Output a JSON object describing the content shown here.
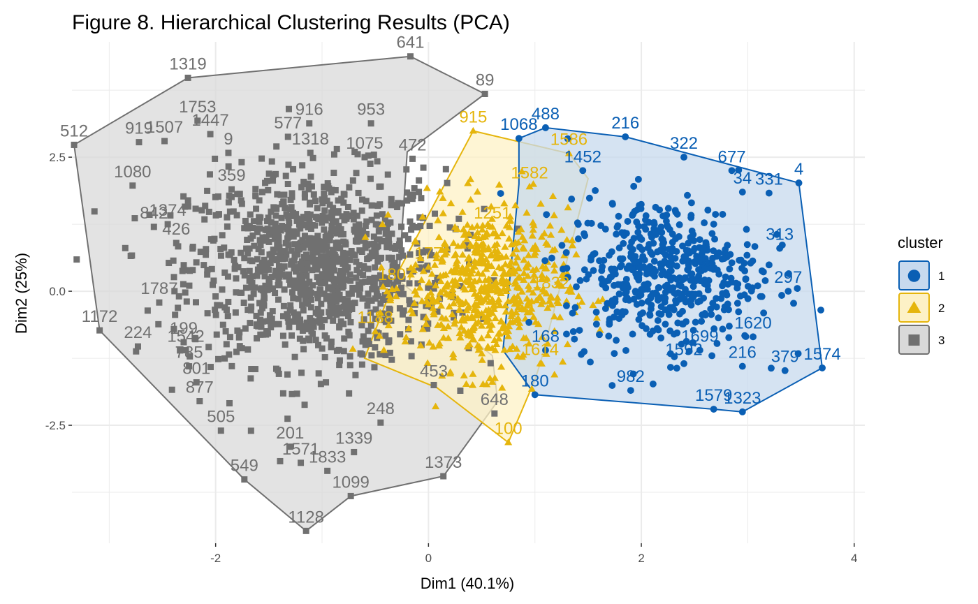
{
  "chart_data": {
    "type": "scatter",
    "title": "Figure 8. Hierarchical Clustering Results (PCA)",
    "xlabel": "Dim1 (40.1%)",
    "ylabel": "Dim2 (25%)",
    "xlim": [
      -3.35,
      4.1
    ],
    "ylim": [
      -4.7,
      4.65
    ],
    "xticks": [
      -2,
      0,
      2,
      4
    ],
    "xtick_labels": [
      "-2",
      "0",
      "2",
      "4"
    ],
    "yticks": [
      -2.5,
      0,
      2.5
    ],
    "ytick_labels": [
      "-2.5",
      "0.0",
      "2.5"
    ],
    "grid": true,
    "legend": {
      "title": "cluster",
      "position": "right",
      "entries": [
        {
          "label": "1",
          "color": "#0a5fb4",
          "fill": "#c7d9ee",
          "shape": "circle"
        },
        {
          "label": "2",
          "color": "#e5b50c",
          "fill": "#fdf1c6",
          "shape": "triangle"
        },
        {
          "label": "3",
          "color": "#707070",
          "fill": "#d9d9d9",
          "shape": "square"
        }
      ]
    },
    "series": [
      {
        "name": "3",
        "color": "#707070",
        "hull": [
          [
            -3.33,
            2.73
          ],
          [
            -2.26,
            3.98
          ],
          [
            -0.17,
            4.38
          ],
          [
            0.53,
            3.68
          ],
          [
            -0.2,
            2.6
          ],
          [
            -0.28,
            0.2
          ],
          [
            0.6,
            -1.2
          ],
          [
            0.65,
            -2.05
          ],
          [
            0.14,
            -3.45
          ],
          [
            -0.73,
            -3.82
          ],
          [
            -1.15,
            -4.47
          ],
          [
            -1.73,
            -3.51
          ],
          [
            -3.09,
            -0.73
          ]
        ],
        "points": [
          {
            "x": -3.33,
            "y": 2.73,
            "label": "512"
          },
          {
            "x": -2.26,
            "y": 3.98,
            "label": "1319"
          },
          {
            "x": -0.17,
            "y": 4.38,
            "label": "641"
          },
          {
            "x": 0.53,
            "y": 3.68,
            "label": "89"
          },
          {
            "x": -2.17,
            "y": 3.18,
            "label": "1753"
          },
          {
            "x": -0.54,
            "y": 3.13,
            "label": "953"
          },
          {
            "x": -1.12,
            "y": 3.13,
            "label": "916"
          },
          {
            "x": -2.48,
            "y": 2.8,
            "label": "1507"
          },
          {
            "x": -2.05,
            "y": 2.93,
            "label": "1447"
          },
          {
            "x": -2.72,
            "y": 2.78,
            "label": "919"
          },
          {
            "x": -2.78,
            "y": 1.97,
            "label": "1080"
          },
          {
            "x": -1.32,
            "y": 2.88,
            "label": "577"
          },
          {
            "x": -1.11,
            "y": 2.58,
            "label": "1318"
          },
          {
            "x": -1.88,
            "y": 2.58,
            "label": "9"
          },
          {
            "x": -0.6,
            "y": 2.5,
            "label": "1075"
          },
          {
            "x": -0.15,
            "y": 2.47,
            "label": "472"
          },
          {
            "x": -1.85,
            "y": 1.9,
            "label": "359"
          },
          {
            "x": -2.58,
            "y": 1.2,
            "label": "842"
          },
          {
            "x": -2.45,
            "y": 1.25,
            "label": "1374"
          },
          {
            "x": -2.37,
            "y": 0.9,
            "label": "426"
          },
          {
            "x": -2.53,
            "y": -0.21,
            "label": "1787"
          },
          {
            "x": -3.09,
            "y": -0.73,
            "label": "1172"
          },
          {
            "x": -2.73,
            "y": -1.03,
            "label": "224"
          },
          {
            "x": -2.3,
            "y": -0.95,
            "label": "199"
          },
          {
            "x": -2.28,
            "y": -1.1,
            "label": "1542"
          },
          {
            "x": -2.25,
            "y": -1.4,
            "label": "785"
          },
          {
            "x": -2.18,
            "y": -1.7,
            "label": "801"
          },
          {
            "x": -2.15,
            "y": -2.05,
            "label": "877"
          },
          {
            "x": -1.95,
            "y": -2.6,
            "label": "505"
          },
          {
            "x": -1.73,
            "y": -3.51,
            "label": "549"
          },
          {
            "x": -1.15,
            "y": -4.47,
            "label": "1128"
          },
          {
            "x": -1.3,
            "y": -2.9,
            "label": "201"
          },
          {
            "x": -1.2,
            "y": -3.2,
            "label": "1571"
          },
          {
            "x": -0.7,
            "y": -3.0,
            "label": "1339"
          },
          {
            "x": -0.95,
            "y": -3.35,
            "label": "1833"
          },
          {
            "x": -0.73,
            "y": -3.82,
            "label": "1099"
          },
          {
            "x": 0.14,
            "y": -3.45,
            "label": "1373"
          },
          {
            "x": 0.62,
            "y": -2.28,
            "label": "648"
          },
          {
            "x": 0.05,
            "y": -1.75,
            "label": "453"
          },
          {
            "x": -0.45,
            "y": -2.45,
            "label": "248"
          }
        ]
      },
      {
        "name": "2",
        "color": "#e5b50c",
        "hull": [
          [
            0.42,
            2.99
          ],
          [
            1.32,
            2.57
          ],
          [
            1.5,
            2.1
          ],
          [
            1.05,
            -1.35
          ],
          [
            1.0,
            -1.65
          ],
          [
            0.75,
            -2.82
          ],
          [
            0.08,
            -1.8
          ],
          [
            -0.6,
            -1.25
          ],
          [
            -0.3,
            0.3
          ],
          [
            0.1,
            1.8
          ]
        ],
        "points": [
          {
            "x": 0.42,
            "y": 2.99,
            "label": "915"
          },
          {
            "x": 0.75,
            "y": -2.82,
            "label": "100"
          },
          {
            "x": 1.32,
            "y": 2.57,
            "label": "1586"
          },
          {
            "x": 1.05,
            "y": -1.35,
            "label": "1614"
          },
          {
            "x": 0.0,
            "y": 0.45,
            "label": "177"
          },
          {
            "x": -0.3,
            "y": 0.05,
            "label": "1807"
          },
          {
            "x": -0.5,
            "y": -0.75,
            "label": "1188"
          },
          {
            "x": 1.15,
            "y": -0.1,
            "label": "1832"
          },
          {
            "x": 0.95,
            "y": 1.95,
            "label": "1582"
          },
          {
            "x": 0.6,
            "y": 1.2,
            "label": "1251"
          }
        ]
      },
      {
        "name": "1",
        "color": "#0a5fb4",
        "hull": [
          [
            0.85,
            2.85
          ],
          [
            1.1,
            3.05
          ],
          [
            1.85,
            2.88
          ],
          [
            3.48,
            2.02
          ],
          [
            3.7,
            -1.43
          ],
          [
            2.95,
            -2.25
          ],
          [
            2.68,
            -2.2
          ],
          [
            1.0,
            -1.93
          ],
          [
            0.7,
            -1.1
          ],
          [
            0.85,
            2.0
          ]
        ],
        "points": [
          {
            "x": 1.1,
            "y": 3.05,
            "label": "488"
          },
          {
            "x": 1.85,
            "y": 2.88,
            "label": "216"
          },
          {
            "x": 0.85,
            "y": 2.85,
            "label": "1068"
          },
          {
            "x": 3.48,
            "y": 2.02,
            "label": "4"
          },
          {
            "x": 3.2,
            "y": 1.83,
            "label": "331"
          },
          {
            "x": 2.4,
            "y": 2.5,
            "label": "322"
          },
          {
            "x": 2.85,
            "y": 2.25,
            "label": "677"
          },
          {
            "x": 2.95,
            "y": 1.85,
            "label": "34"
          },
          {
            "x": 1.45,
            "y": 2.25,
            "label": "1452"
          },
          {
            "x": 3.3,
            "y": 0.8,
            "label": "313"
          },
          {
            "x": 3.38,
            "y": 0.0,
            "label": "297"
          },
          {
            "x": 3.7,
            "y": -1.43,
            "label": "1574"
          },
          {
            "x": 3.35,
            "y": -1.48,
            "label": "379"
          },
          {
            "x": 2.95,
            "y": -1.4,
            "label": "216"
          },
          {
            "x": 2.55,
            "y": -1.1,
            "label": "1699"
          },
          {
            "x": 2.4,
            "y": -1.35,
            "label": "1592"
          },
          {
            "x": 1.9,
            "y": -1.85,
            "label": "982"
          },
          {
            "x": 2.68,
            "y": -2.2,
            "label": "1579"
          },
          {
            "x": 2.95,
            "y": -2.25,
            "label": "1323"
          },
          {
            "x": 3.05,
            "y": -0.85,
            "label": "1620"
          },
          {
            "x": 1.0,
            "y": -1.93,
            "label": "180"
          },
          {
            "x": 1.1,
            "y": -1.1,
            "label": "168"
          }
        ]
      }
    ]
  }
}
